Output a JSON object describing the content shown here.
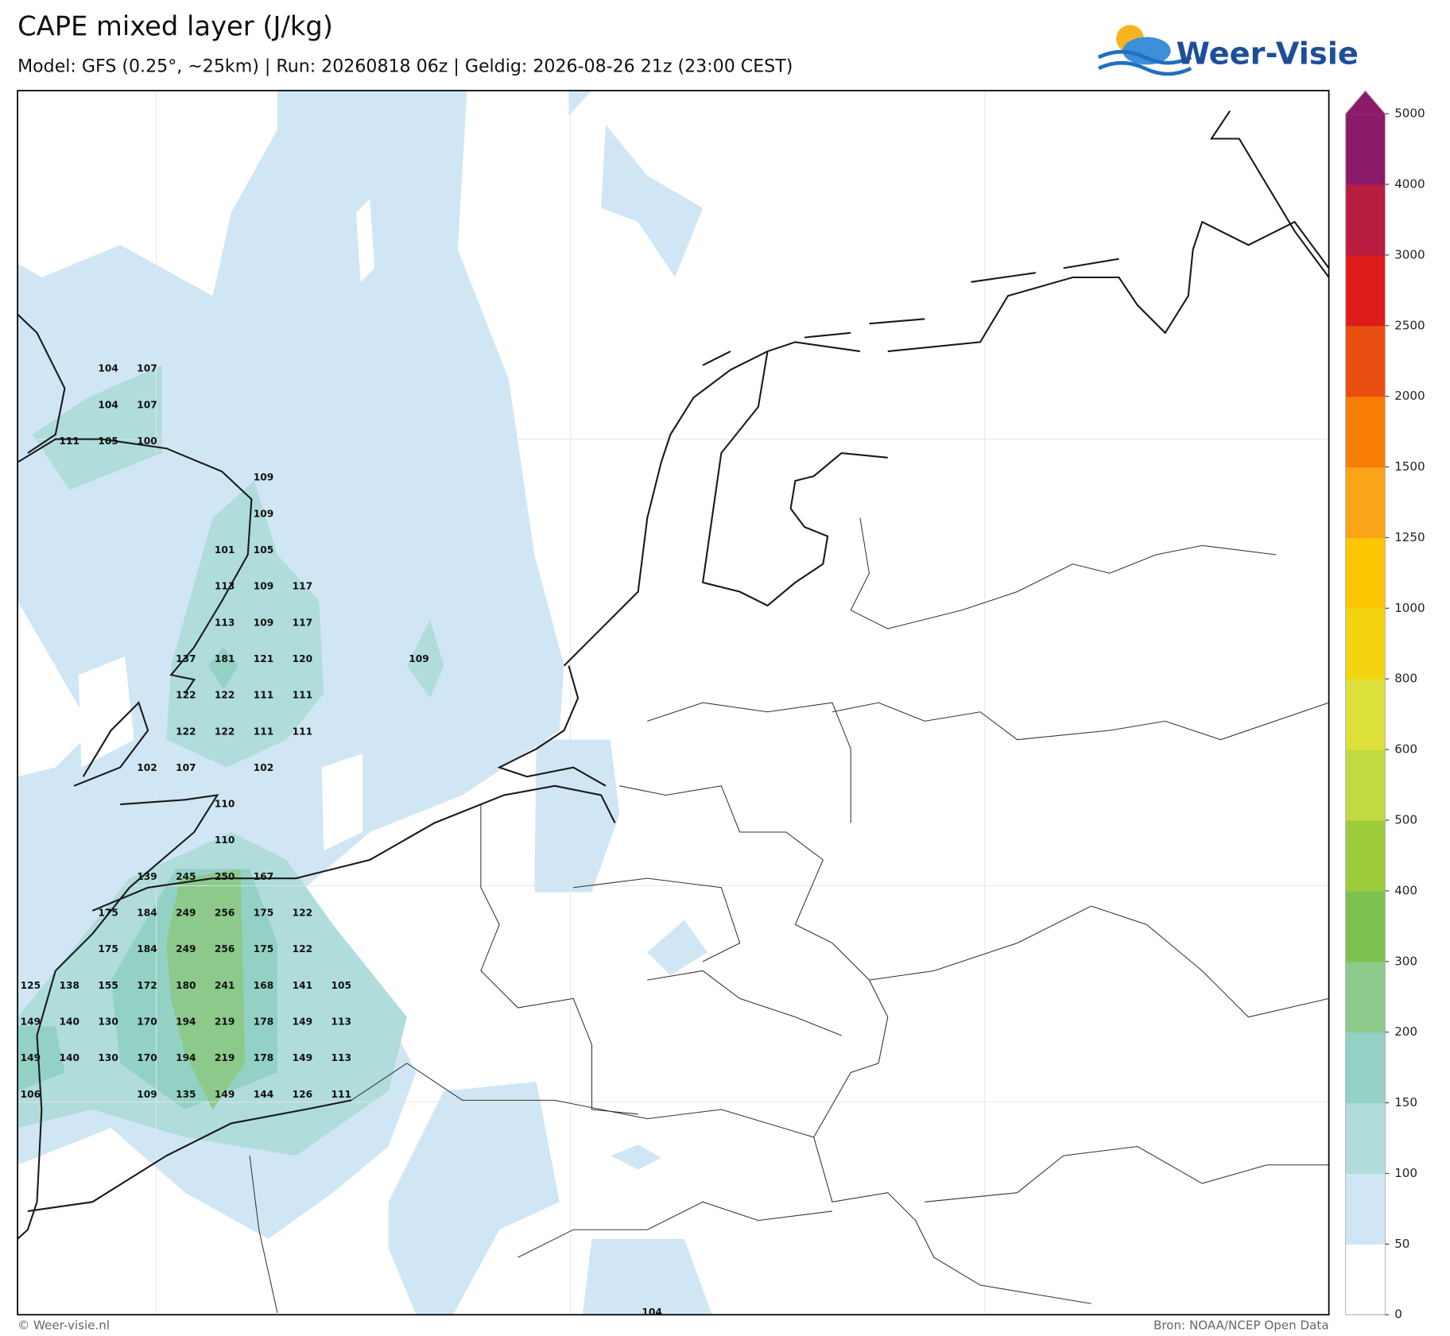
{
  "header": {
    "title": "CAPE mixed layer (J/kg)",
    "subtitle": "Model: GFS (0.25°, ~25km)  |  Run: 20260818 06z  |  Geldig: 2026-08-26 21z (23:00 CEST)"
  },
  "logo": "Weer-Visie",
  "footer": {
    "copyright": "© Weer-visie.nl",
    "source": "Bron: NOAA/NCEP Open Data"
  },
  "cape_labels": [
    [
      null,
      null,
      104,
      107,
      null,
      null,
      null,
      null,
      null,
      null,
      null,
      null,
      null,
      null,
      null,
      null,
      null
    ],
    [
      null,
      null,
      104,
      107,
      null,
      null,
      null,
      null,
      null,
      null,
      null,
      null,
      null,
      null,
      null,
      null,
      null
    ],
    [
      null,
      111,
      105,
      100,
      null,
      null,
      null,
      null,
      null,
      null,
      null,
      null,
      null,
      null,
      null,
      null,
      null
    ],
    [
      null,
      null,
      null,
      null,
      null,
      null,
      109,
      null,
      null,
      null,
      null,
      null,
      null,
      null,
      null,
      null,
      null
    ],
    [
      null,
      null,
      null,
      null,
      null,
      null,
      109,
      null,
      null,
      null,
      null,
      null,
      null,
      null,
      null,
      null,
      null
    ],
    [
      null,
      null,
      null,
      null,
      null,
      101,
      105,
      null,
      null,
      null,
      null,
      null,
      null,
      null,
      null,
      null,
      null
    ],
    [
      null,
      null,
      null,
      null,
      null,
      113,
      109,
      117,
      null,
      null,
      null,
      null,
      null,
      null,
      null,
      null,
      null
    ],
    [
      null,
      null,
      null,
      null,
      null,
      113,
      109,
      117,
      null,
      null,
      null,
      null,
      null,
      null,
      null,
      null,
      null
    ],
    [
      null,
      null,
      null,
      null,
      137,
      181,
      121,
      120,
      null,
      null,
      109,
      null,
      null,
      null,
      null,
      null,
      null
    ],
    [
      null,
      null,
      null,
      null,
      122,
      122,
      111,
      111,
      null,
      null,
      null,
      null,
      null,
      null,
      null,
      null,
      null
    ],
    [
      null,
      null,
      null,
      null,
      122,
      122,
      111,
      111,
      null,
      null,
      null,
      null,
      null,
      null,
      null,
      null,
      null
    ],
    [
      null,
      null,
      null,
      102,
      107,
      null,
      102,
      null,
      null,
      null,
      null,
      null,
      null,
      null,
      null,
      null,
      null
    ],
    [
      null,
      null,
      null,
      null,
      null,
      110,
      null,
      null,
      null,
      null,
      null,
      null,
      null,
      null,
      null,
      null,
      null
    ],
    [
      null,
      null,
      null,
      null,
      null,
      110,
      null,
      null,
      null,
      null,
      null,
      null,
      null,
      null,
      null,
      null,
      null
    ],
    [
      null,
      null,
      null,
      139,
      245,
      250,
      167,
      null,
      null,
      null,
      null,
      null,
      null,
      null,
      null,
      null,
      null
    ],
    [
      null,
      null,
      175,
      184,
      249,
      256,
      175,
      122,
      null,
      null,
      null,
      null,
      null,
      null,
      null,
      null,
      null
    ],
    [
      null,
      null,
      175,
      184,
      249,
      256,
      175,
      122,
      null,
      null,
      null,
      null,
      null,
      null,
      null,
      null,
      null
    ],
    [
      125,
      138,
      155,
      172,
      180,
      241,
      168,
      141,
      105,
      null,
      null,
      null,
      null,
      null,
      null,
      null,
      null
    ],
    [
      149,
      140,
      130,
      170,
      194,
      219,
      178,
      149,
      113,
      null,
      null,
      null,
      null,
      null,
      null,
      null,
      null
    ],
    [
      149,
      140,
      130,
      170,
      194,
      219,
      178,
      149,
      113,
      null,
      null,
      null,
      null,
      null,
      null,
      null,
      null
    ],
    [
      106,
      null,
      null,
      109,
      135,
      149,
      144,
      126,
      111,
      null,
      null,
      null,
      null,
      null,
      null,
      null,
      null
    ],
    [
      null,
      null,
      null,
      null,
      null,
      null,
      null,
      null,
      null,
      null,
      null,
      null,
      null,
      null,
      null,
      null,
      null
    ],
    [
      null,
      null,
      null,
      null,
      null,
      null,
      null,
      null,
      null,
      null,
      null,
      null,
      null,
      null,
      null,
      null,
      null
    ],
    [
      null,
      null,
      null,
      null,
      null,
      null,
      null,
      null,
      null,
      null,
      null,
      null,
      null,
      null,
      null,
      null,
      null
    ],
    [
      null,
      null,
      null,
      null,
      null,
      null,
      null,
      null,
      null,
      null,
      null,
      null,
      null,
      null,
      null,
      null,
      null
    ],
    [
      null,
      null,
      null,
      null,
      null,
      null,
      null,
      null,
      null,
      null,
      null,
      null,
      null,
      null,
      null,
      null,
      null
    ],
    [
      null,
      null,
      null,
      null,
      null,
      null,
      null,
      null,
      null,
      null,
      null,
      null,
      null,
      null,
      null,
      null,
      104
    ]
  ],
  "colorbar": {
    "ticks": [
      0,
      50,
      100,
      150,
      200,
      300,
      400,
      500,
      600,
      800,
      1000,
      1250,
      1500,
      2000,
      2500,
      3000,
      4000,
      5000
    ],
    "colors": [
      "#ffffff",
      "#d0e6f5",
      "#b0dcdc",
      "#93d1c4",
      "#8cc98a",
      "#7dc250",
      "#9ccc3c",
      "#c2d942",
      "#dde03a",
      "#f2d50f",
      "#fbc500",
      "#fba418",
      "#f97e06",
      "#e84e10",
      "#de1d1b",
      "#b81d3f",
      "#8c1a6a"
    ],
    "extend_color": "#8c1a6a"
  }
}
